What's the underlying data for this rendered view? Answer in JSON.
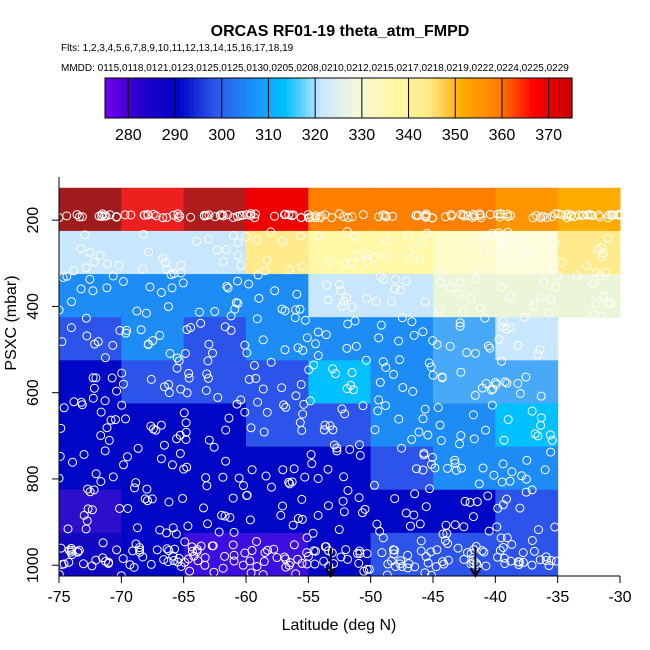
{
  "chart_data": {
    "type": "heatmap",
    "title": "ORCAS RF01-19 theta_atm_FMPD",
    "flights_line": "Flts: 1,2,3,4,5,6,7,8,9,10,11,12,13,14,15,16,17,18,19",
    "dates_line": "MMDD: 0115,0118,0121,0123,0125,0125,0130,0205,0208,0210,0212,0215,0217,0218,0219,0222,0224,0225,0229",
    "xlabel": "Latitude (deg N)",
    "ylabel": "PSXC (mbar)",
    "xlim": [
      -75,
      -30
    ],
    "ylim": [
      1025,
      100
    ],
    "y_reversed": true,
    "xticks": [
      "-75",
      "-70",
      "-65",
      "-60",
      "-55",
      "-50",
      "-45",
      "-40",
      "-35",
      "-30"
    ],
    "xtick_values": [
      -75,
      -70,
      -65,
      -60,
      -55,
      -50,
      -45,
      -40,
      -35,
      -30
    ],
    "yticks": [
      "200",
      "400",
      "600",
      "800",
      "1000"
    ],
    "ytick_values": [
      200,
      400,
      600,
      800,
      1000
    ],
    "colorbar": {
      "min": 275,
      "max": 375,
      "ticks": [
        "280",
        "290",
        "300",
        "310",
        "320",
        "330",
        "340",
        "350",
        "360",
        "370"
      ],
      "tick_values": [
        280,
        290,
        300,
        310,
        320,
        330,
        340,
        350,
        360,
        370
      ],
      "colors": [
        "#a01c1c",
        "#6f00e8",
        "#2200cc",
        "#0006c6",
        "#2c54ea",
        "#1d8cf7",
        "#00c0ff",
        "#c8e7fd",
        "#f4f8dc",
        "#fff8a6",
        "#ffeb8c",
        "#ffab00",
        "#ff7f00",
        "#ff0000",
        "#cc0000",
        "#a01c1c"
      ]
    },
    "lat_bins": [
      -75,
      -70,
      -65,
      -60,
      -55,
      -50,
      -45,
      -40,
      -35,
      -30
    ],
    "p_bins": [
      125,
      225,
      325,
      425,
      525,
      625,
      725,
      825,
      925,
      1025
    ],
    "cells": [
      [
        "#a01c1c",
        "#ee1f1f",
        "#b01c1c",
        "#ee0000",
        "#ff7f00",
        "#ff7f00",
        "#ff7f00",
        "#ff9500",
        "#ffab00"
      ],
      [
        "#c8e7fd",
        "#c8e7fd",
        "#c8e7fd",
        "#ffeb8c",
        "#fff8a6",
        "#fff8a6",
        "#fdfcc8",
        "#fdfdde",
        "#ffeb8c"
      ],
      [
        "#1d8cf7",
        "#1d8cf7",
        "#1d8cf7",
        "#1d8cf7",
        "#c8e7fd",
        "#c8e7fd",
        "#ebf6d8",
        "#ebf6d8",
        "#ebf6d8"
      ],
      [
        "#2c54ea",
        "#1d8cf7",
        "#2c54ea",
        "#1d8cf7",
        "#1d8cf7",
        "#1d8cf7",
        "#49a9f9",
        "#c8e7fd",
        null
      ],
      [
        "#0006c6",
        "#2c54ea",
        "#2c54ea",
        "#2c54ea",
        "#00c0ff",
        "#1d8cf7",
        "#49a9f9",
        "#49a9f9",
        null
      ],
      [
        "#0006c6",
        "#0006c6",
        "#0006c6",
        "#2c54ea",
        "#2c54ea",
        "#1d8cf7",
        "#1d8cf7",
        "#00c0ff",
        null
      ],
      [
        "#0006c6",
        "#0006c6",
        "#0006c6",
        "#0006c6",
        "#0006c6",
        "#2c54ea",
        "#1d8cf7",
        "#1d8cf7",
        null
      ],
      [
        "#2c0fcc",
        "#0006c6",
        "#0006c6",
        "#0006c6",
        "#0006c6",
        "#0006c6",
        "#0006c6",
        "#2c54ea",
        null
      ],
      [
        "#1208c2",
        "#0006c6",
        "#3c0ee0",
        "#3c0ee0",
        "#0006c6",
        "#2c54ea",
        "#2c54ea",
        "#2c54ea",
        null
      ],
      [
        "#6f00e8",
        "#6f00e8",
        "#6f00e8",
        "#6f00e8",
        "#0006c6",
        "#0006c6",
        "#0006c6",
        "#0006c6",
        null
      ]
    ],
    "point_color": "#ffffff",
    "marker_color": "#000000",
    "arrow_markers": [
      {
        "lat": -53.2,
        "p_top": 960,
        "p_bottom": 1025
      },
      {
        "lat": -41.6,
        "p_top": 960,
        "p_bottom": 1025
      }
    ]
  }
}
